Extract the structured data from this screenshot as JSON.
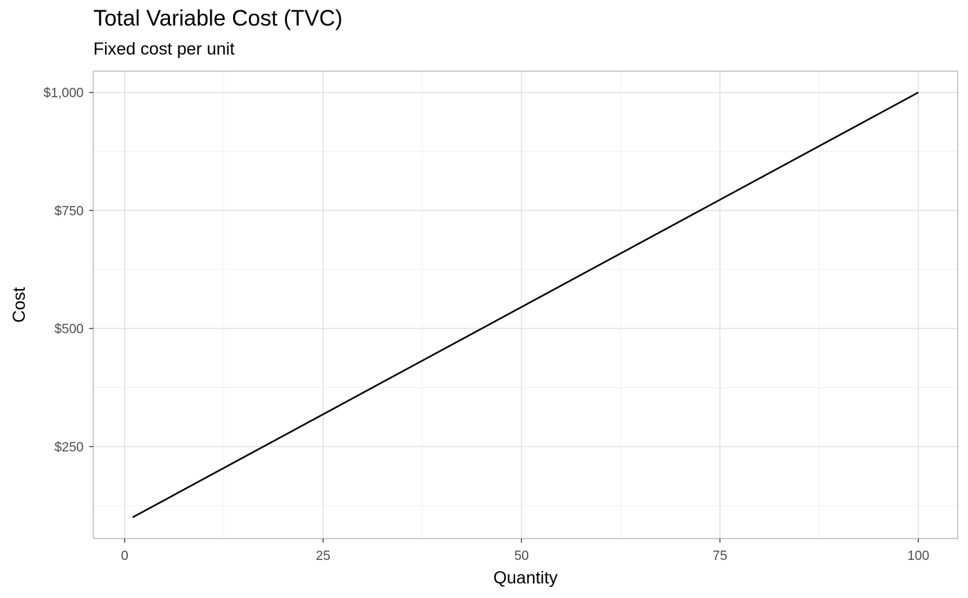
{
  "chart_data": {
    "type": "line",
    "title": "Total Variable Cost (TVC)",
    "subtitle": "Fixed cost per unit",
    "xlabel": "Quantity",
    "ylabel": "Cost",
    "xlim": [
      -3.95,
      104.95
    ],
    "ylim": [
      55,
      1045
    ],
    "x_ticks": [
      0,
      25,
      50,
      75,
      100
    ],
    "x_tick_labels": [
      "0",
      "25",
      "50",
      "75",
      "100"
    ],
    "y_ticks": [
      250,
      500,
      750,
      1000
    ],
    "y_tick_labels": [
      "$250",
      "$500",
      "$750",
      "$1,000"
    ],
    "x_minor_ticks": [
      12.5,
      37.5,
      62.5,
      87.5
    ],
    "y_minor_ticks": [
      125,
      375,
      625,
      875
    ],
    "grid": true,
    "legend": "none",
    "line_color": "#000000",
    "grid_color": "#ebebeb",
    "panel_border_color": "#b3b3b3",
    "series": [
      {
        "x": [
          1,
          100
        ],
        "y": [
          100,
          1000
        ]
      }
    ]
  }
}
